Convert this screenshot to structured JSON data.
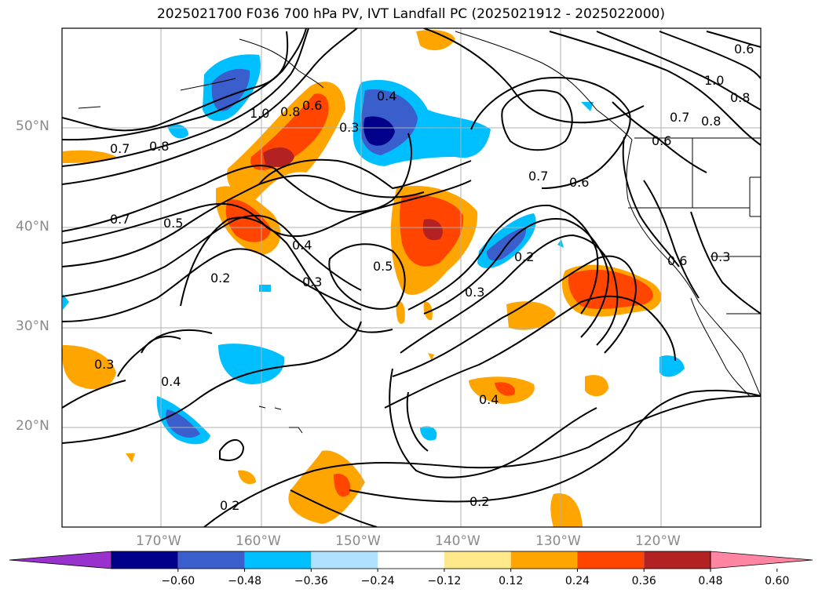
{
  "title": "2025021700 F036 700 hPa PV, IVT Landfall PC (2025021912 - 2025022000)",
  "lat_labels": [
    "50°N",
    "40°N",
    "30°N",
    "20°N"
  ],
  "lon_labels": [
    "170°W",
    "160°W",
    "150°W",
    "140°W",
    "130°W",
    "120°W"
  ],
  "contour_labels": [
    "1.0",
    "0.8",
    "0.6",
    "0.4",
    "0.3",
    "0.7",
    "0.8",
    "0.7",
    "0.5",
    "0.4",
    "0.3",
    "0.2",
    "0.5",
    "0.7",
    "0.6",
    "0.2",
    "0.3",
    "0.6",
    "0.3",
    "0.4",
    "0.4",
    "0.2",
    "0.2",
    "0.8",
    "0.7",
    "0.6",
    "1.0",
    "0.8",
    "0.6",
    "0.3"
  ],
  "colorbar": {
    "ticks": [
      "−0.60",
      "−0.48",
      "−0.36",
      "−0.24",
      "−0.12",
      "0.12",
      "0.24",
      "0.36",
      "0.48",
      "0.60"
    ],
    "colors": [
      "#9932cc",
      "#00008b",
      "#3a5fcd",
      "#00bfff",
      "#b0e2ff",
      "#ffffff",
      "#ffe98a",
      "#ffa500",
      "#ff4500",
      "#b22222",
      "#ff85a2"
    ]
  }
}
